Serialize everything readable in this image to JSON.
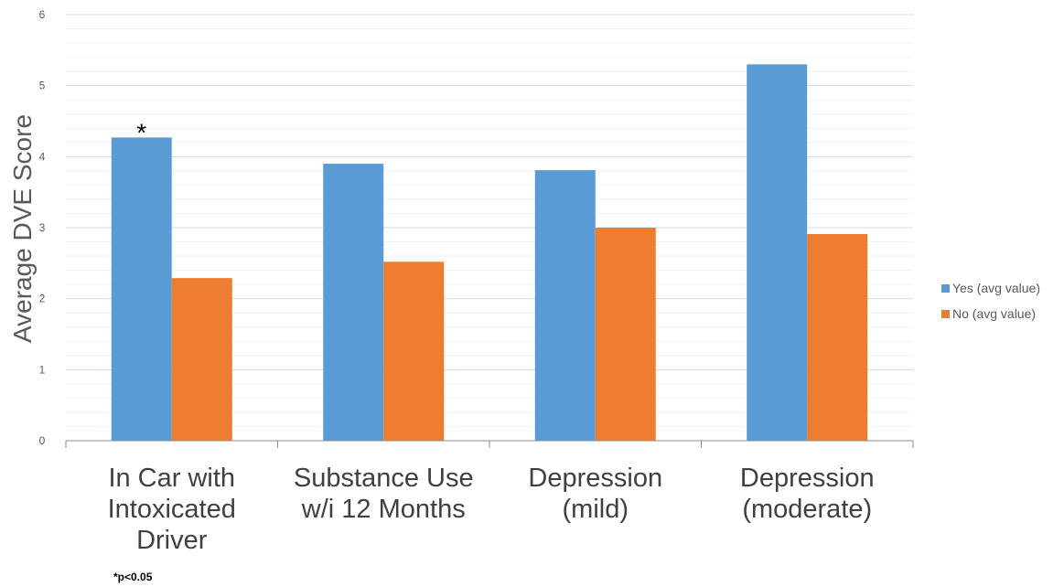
{
  "chart_data": {
    "type": "bar",
    "title": "",
    "xlabel": "",
    "ylabel": "Average DVE Score",
    "ylim": [
      0,
      6
    ],
    "yticks": [
      0,
      1,
      2,
      3,
      4,
      5,
      6
    ],
    "grid": true,
    "legend_position": "right",
    "categories": [
      [
        "In Car with",
        "Intoxicated",
        "Driver"
      ],
      [
        "Substance Use",
        "w/i 12 Months"
      ],
      [
        "Depression",
        "(mild)"
      ],
      [
        "Depression",
        "(moderate)"
      ]
    ],
    "series": [
      {
        "name": "Yes (avg value)",
        "color": "#5b9bd5",
        "values": [
          4.27,
          3.9,
          3.81,
          5.3
        ]
      },
      {
        "name": "No (avg value)",
        "color": "#ed7d31",
        "values": [
          2.29,
          2.52,
          3.0,
          2.91
        ]
      }
    ],
    "annotations": [
      {
        "text": "*",
        "category_index": 0,
        "series_index": 0
      }
    ],
    "footnote": "*p<0.05"
  }
}
